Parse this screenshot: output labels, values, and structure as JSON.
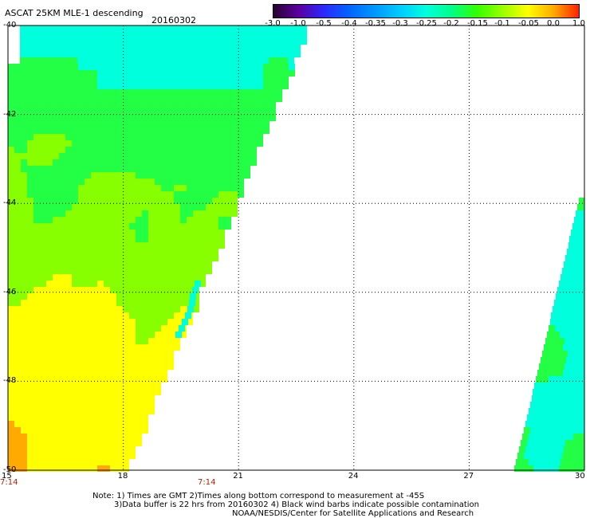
{
  "header": {
    "title": "ASCAT 25KM MLE-1 descending",
    "date": "20160302"
  },
  "colorbar": {
    "labels": [
      "-3.0",
      "-1.0",
      "-0.5",
      "-0.4",
      "-0.35",
      "-0.3",
      "-0.25",
      "-0.2",
      "-0.15",
      "-0.1",
      "-0.05",
      "0.0",
      "1.0"
    ],
    "colors": [
      "#2a0033",
      "#5a00a0",
      "#2a2aff",
      "#0066ff",
      "#0099ff",
      "#00ccff",
      "#00ffdd",
      "#00ff88",
      "#33ff00",
      "#99ff00",
      "#ffff00",
      "#ffaa00",
      "#ff2200"
    ]
  },
  "map": {
    "lat_labels": [
      "-40",
      "-42",
      "-44",
      "-46",
      "-48",
      "-50"
    ],
    "lon_labels": [
      "15",
      "18",
      "21",
      "24",
      "27",
      "30"
    ],
    "time_labels": [
      "7:14",
      "7:14"
    ],
    "swath_colors": {
      "cyan": "#00ffdd",
      "green": "#22ff44",
      "lime": "#88ff00",
      "yellow": "#ffff00",
      "orange": "#ffaa00",
      "red_orange": "#ff7700",
      "deep_cyan": "#00ccff"
    }
  },
  "notes": {
    "line1": "Note: 1) Times are GMT 2)Times along bottom correspond to measurement at -45S",
    "line2": "3)Data buffer is 22 hrs from 20160302 4) Black wind barbs indicate possible contamination",
    "line3": "NOAA/NESDIS/Center for Satellite Applications and Research"
  }
}
